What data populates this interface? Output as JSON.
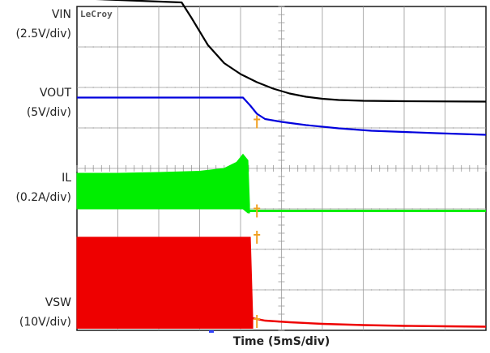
{
  "chart_data": {
    "type": "line",
    "title": "",
    "xlabel": "Time (5mS/div)",
    "brand": "LeCroy",
    "grid": true,
    "divisions": {
      "x": 10,
      "y": 8
    },
    "time_per_div_ms": 5,
    "trigger_time_ms": 22,
    "series": [
      {
        "name": "VIN",
        "scale": "(2.5V/div)",
        "color": "#000000",
        "points": [
          [
            0,
            8.2
          ],
          [
            12.8,
            8.1
          ],
          [
            14,
            7.72
          ],
          [
            16,
            7.05
          ],
          [
            18,
            6.6
          ],
          [
            20,
            6.33
          ],
          [
            22,
            6.13
          ],
          [
            24,
            5.97
          ],
          [
            26,
            5.85
          ],
          [
            28,
            5.77
          ],
          [
            30,
            5.72
          ],
          [
            32,
            5.69
          ],
          [
            35,
            5.67
          ],
          [
            40,
            5.66
          ],
          [
            50,
            5.65
          ]
        ]
      },
      {
        "name": "VOUT",
        "scale": "(5V/div)",
        "color": "#0000dd",
        "points": [
          [
            0,
            5.75
          ],
          [
            20.3,
            5.75
          ],
          [
            21.2,
            5.55
          ],
          [
            22,
            5.35
          ],
          [
            23,
            5.22
          ],
          [
            25,
            5.15
          ],
          [
            28,
            5.07
          ],
          [
            32,
            4.99
          ],
          [
            36,
            4.93
          ],
          [
            40,
            4.9
          ],
          [
            44,
            4.87
          ],
          [
            47,
            4.85
          ],
          [
            50,
            4.83
          ]
        ]
      },
      {
        "name": "IL",
        "scale": "(0.2A/div)",
        "color": "#00ee00",
        "band": [
          [
            0,
            3.88,
            3.0
          ],
          [
            5,
            3.88,
            3.0
          ],
          [
            10,
            3.9,
            3.0
          ],
          [
            15,
            3.93,
            3.0
          ],
          [
            18,
            4.0,
            3.0
          ],
          [
            19.5,
            4.15,
            3.0
          ],
          [
            20.3,
            4.35,
            3.0
          ],
          [
            20.9,
            4.2,
            2.9
          ],
          [
            21.1,
            3.1,
            2.9
          ]
        ],
        "level": 2.95
      },
      {
        "name": "VSW",
        "scale": "(10V/div)",
        "color": "#ee0000",
        "band": [
          [
            0,
            2.3,
            0.05
          ],
          [
            21.2,
            2.3,
            0.05
          ],
          [
            21.5,
            0.3,
            0.05
          ]
        ],
        "tail": [
          [
            21.5,
            0.3
          ],
          [
            23,
            0.24
          ],
          [
            26,
            0.2
          ],
          [
            30,
            0.16
          ],
          [
            35,
            0.13
          ],
          [
            40,
            0.11
          ],
          [
            45,
            0.1
          ],
          [
            50,
            0.09
          ]
        ]
      }
    ],
    "labels": [
      {
        "channel": "VIN",
        "lines": [
          "VIN",
          "(2.5V/div)"
        ]
      },
      {
        "channel": "VOUT",
        "lines": [
          "VOUT",
          "(5V/div)"
        ]
      },
      {
        "channel": "IL",
        "lines": [
          "IL",
          "(0.2A/div)"
        ]
      },
      {
        "channel": "VSW",
        "lines": [
          "VSW",
          "(10V/div)"
        ]
      }
    ]
  }
}
